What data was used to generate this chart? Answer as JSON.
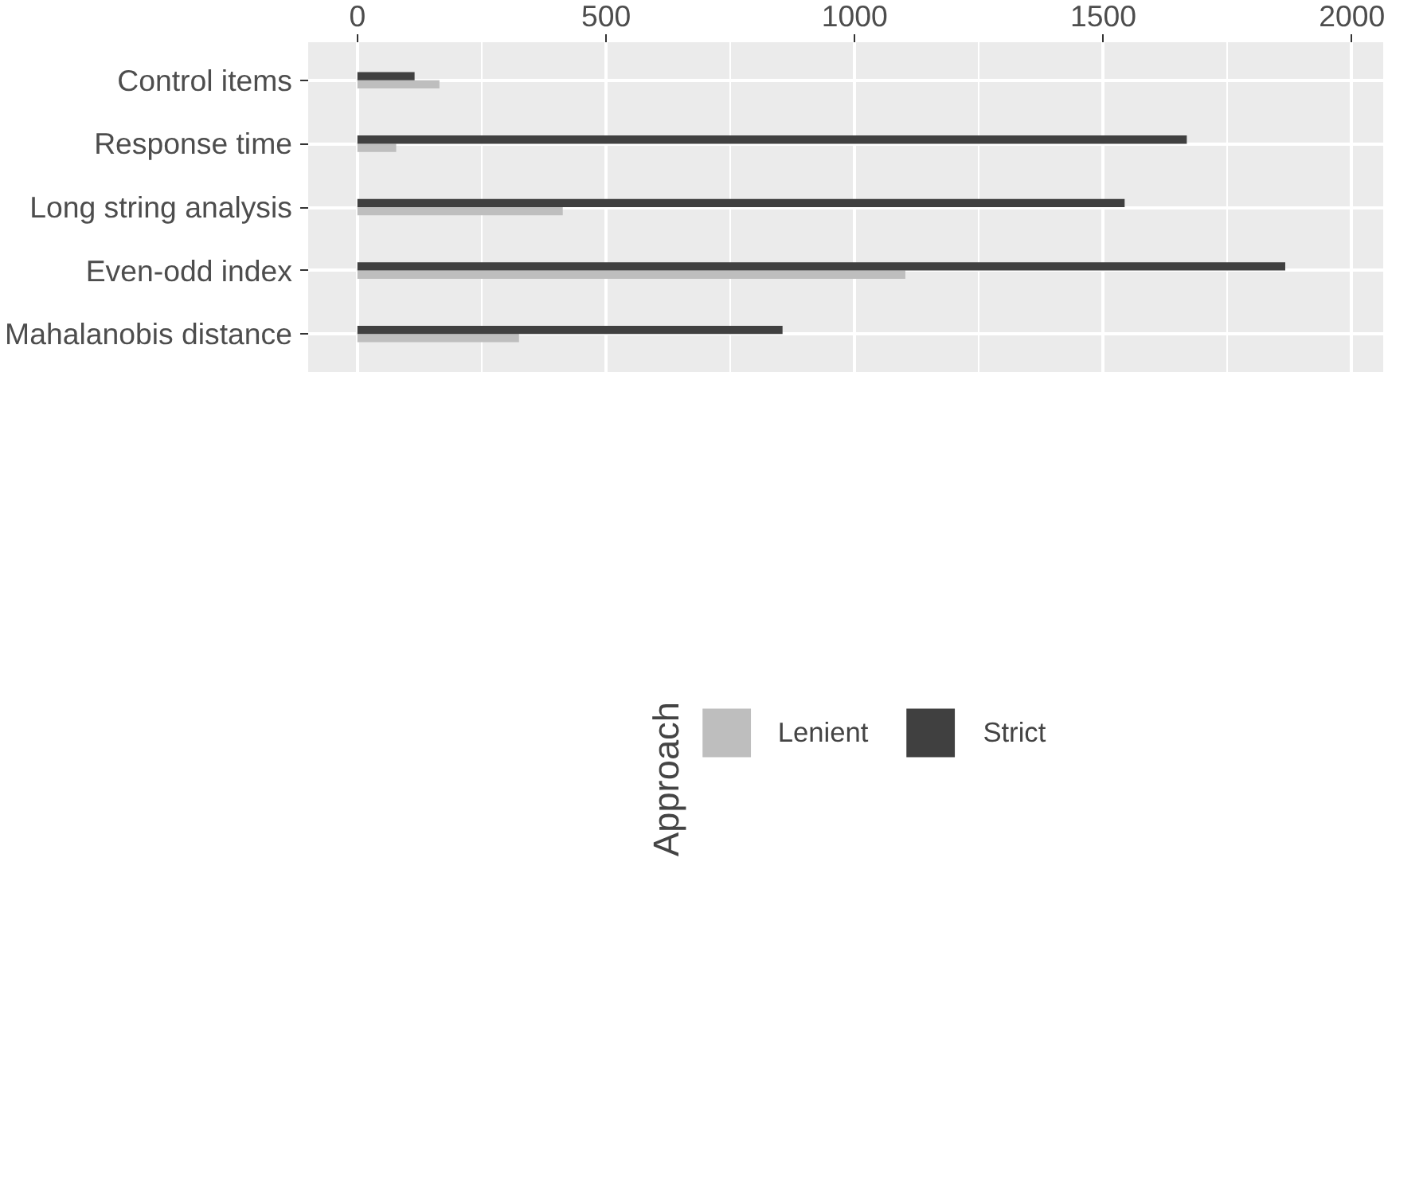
{
  "chart_data": {
    "type": "bar",
    "orientation": "horizontal",
    "categories": [
      "Control items",
      "Response time",
      "Long string analysis",
      "Even-odd index",
      "Mahalanobis distance"
    ],
    "series": [
      {
        "name": "Lenient",
        "color": "#bebebe",
        "values": [
          165,
          78,
          413,
          1102,
          325
        ]
      },
      {
        "name": "Strict",
        "color": "#404040",
        "values": [
          115,
          1668,
          1543,
          1866,
          855
        ]
      }
    ],
    "xlim": [
      -99,
      2063
    ],
    "xticks": [
      0,
      500,
      1000,
      1500,
      2000
    ],
    "grid": true,
    "legend": "bottom",
    "legend_title": "Approach"
  }
}
